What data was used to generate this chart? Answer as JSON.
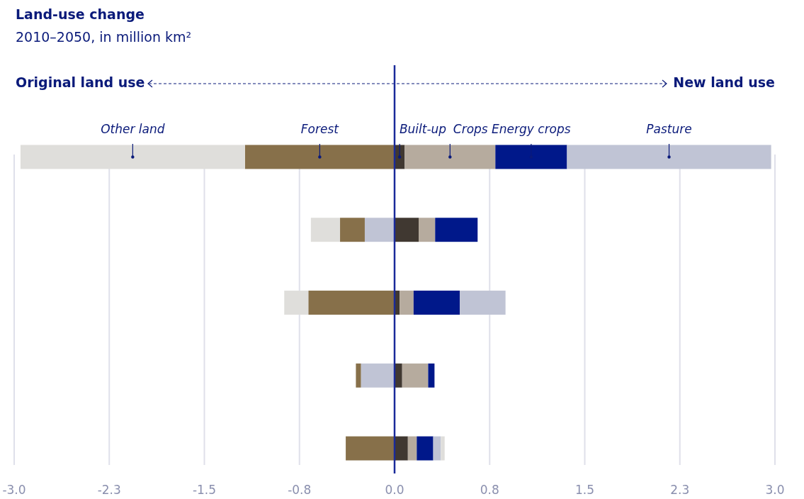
{
  "chart_data": {
    "type": "bar",
    "orientation": "horizontal",
    "stacked": true,
    "title": "Land-use change",
    "subtitle": "2010–2050, in million km²",
    "annotations": [
      "Original land use",
      "New land use"
    ],
    "categories": [
      null,
      null,
      null,
      null,
      null
    ],
    "series": [
      {
        "name": "Built-up",
        "color": "#403831",
        "values": [
          0.08,
          0.19,
          0.04,
          0.06,
          0.105
        ]
      },
      {
        "name": "Crops",
        "color": "#b6ab9e",
        "values": [
          0.715,
          0.13,
          0.11,
          0.205,
          0.07
        ]
      },
      {
        "name": "Energy crops",
        "color": "#00188a",
        "values": [
          0.565,
          0.335,
          0.365,
          0.05,
          0.13
        ]
      },
      {
        "name": "Pasture",
        "color": "#c0c4d5",
        "values": [
          1.61,
          -0.235,
          0.36,
          -0.265,
          0.06
        ]
      },
      {
        "name": "Forest",
        "color": "#87704a",
        "values": [
          -1.18,
          -0.195,
          -0.68,
          -0.04,
          -0.385
        ]
      },
      {
        "name": "Other land",
        "color": "#dfdedb",
        "values": [
          -1.77,
          -0.23,
          -0.19,
          null,
          0.03
        ]
      }
    ],
    "xlim": [
      -3,
      3
    ],
    "xticks": [
      {
        "value": -3,
        "label": "-3.0"
      },
      {
        "value": -2.25,
        "label": "-2.3"
      },
      {
        "value": -1.5,
        "label": "-1.5"
      },
      {
        "value": -0.75,
        "label": "-0.8"
      },
      {
        "value": 0,
        "label": "0.0"
      },
      {
        "value": 0.75,
        "label": "0.8"
      },
      {
        "value": 1.5,
        "label": "1.5"
      },
      {
        "value": 2.25,
        "label": "2.3"
      },
      {
        "value": 3,
        "label": "3.0"
      }
    ],
    "grid": "x",
    "legend": false,
    "ref_lines": [
      {
        "axis": "x",
        "value": 0,
        "color": "#1a2a9a"
      }
    ]
  }
}
